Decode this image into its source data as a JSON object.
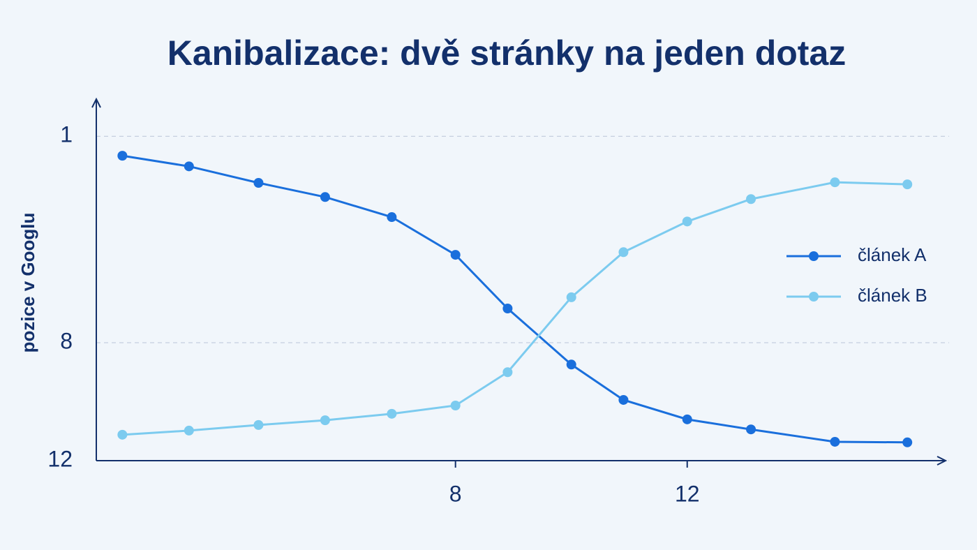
{
  "chart_data": {
    "type": "line",
    "title": "Kanibalizace: dvě stránky na jeden dotaz",
    "y_label": "pozice v Googlu",
    "x": [
      2.25,
      3.4,
      4.6,
      5.75,
      6.9,
      8,
      8.9,
      10,
      10.9,
      12,
      13.1,
      14.55,
      15.8
    ],
    "series": [
      {
        "name": "článek A",
        "color": "#1a6fdc",
        "values": [
          1.66,
          2.02,
          2.58,
          3.06,
          3.74,
          5.02,
          6.84,
          8.74,
          9.94,
          10.6,
          10.94,
          11.36,
          11.38
        ]
      },
      {
        "name": "článek B",
        "color": "#7ccbef",
        "values": [
          11.12,
          10.98,
          10.79,
          10.63,
          10.41,
          10.13,
          9.0,
          6.46,
          4.93,
          3.89,
          3.13,
          2.56,
          2.63
        ]
      }
    ],
    "xlim": [
      1.8,
      16.4
    ],
    "xticks": [
      8,
      12
    ],
    "ylim": [
      12,
      0
    ],
    "yticks": [
      1,
      8,
      12
    ],
    "grid": true,
    "legend": "right"
  }
}
